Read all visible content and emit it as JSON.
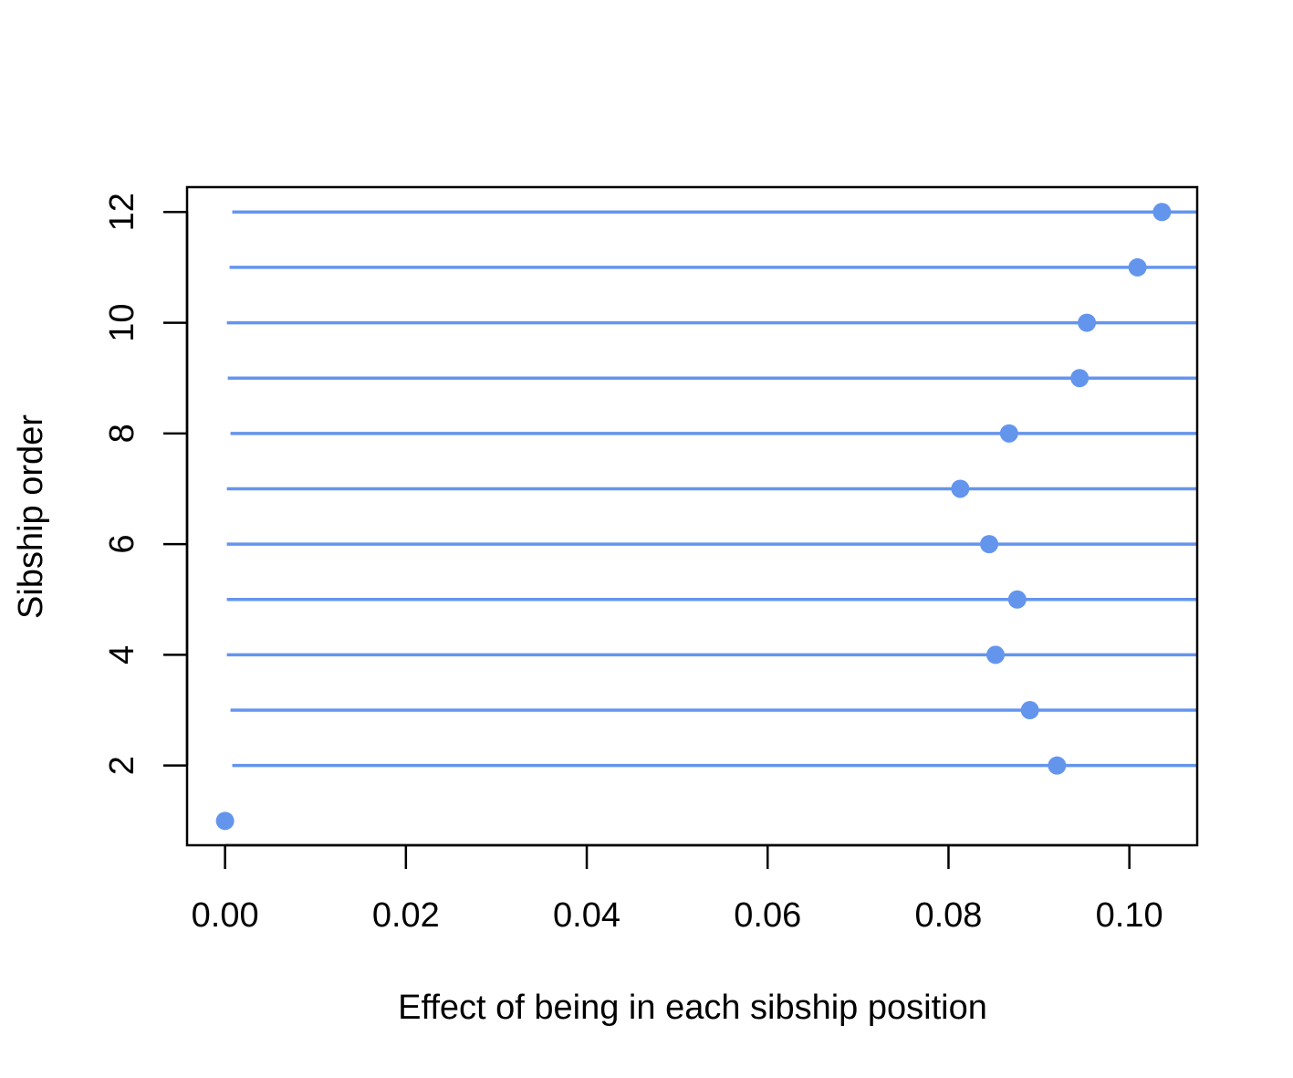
{
  "chart_data": {
    "type": "scatter",
    "title": "",
    "xlabel": "Effect of being in each sibship position",
    "ylabel": "Sibship order",
    "xlim": [
      -0.0042,
      0.1075
    ],
    "ylim": [
      0.56,
      12.45
    ],
    "x_ticks": [
      "0.00",
      "0.02",
      "0.04",
      "0.06",
      "0.08",
      "0.10"
    ],
    "x_tick_values": [
      0,
      0.02,
      0.04,
      0.06,
      0.08,
      0.1
    ],
    "y_ticks": [
      "2",
      "4",
      "6",
      "8",
      "10",
      "12"
    ],
    "y_tick_values": [
      2,
      4,
      6,
      8,
      10,
      12
    ],
    "grid": false,
    "legend": "none",
    "marker_color": "#6495ED",
    "points": [
      {
        "y": 1,
        "x": 0.0,
        "ci": null
      },
      {
        "y": 2,
        "x": 0.092,
        "ci": [
          0.0008,
          0.1075
        ]
      },
      {
        "y": 3,
        "x": 0.089,
        "ci": [
          0.0006,
          0.1075
        ]
      },
      {
        "y": 4,
        "x": 0.0852,
        "ci": [
          0.0002,
          0.1075
        ]
      },
      {
        "y": 5,
        "x": 0.0876,
        "ci": [
          0.0002,
          0.1075
        ]
      },
      {
        "y": 6,
        "x": 0.0845,
        "ci": [
          0.0002,
          0.1075
        ]
      },
      {
        "y": 7,
        "x": 0.0813,
        "ci": [
          0.0002,
          0.1075
        ]
      },
      {
        "y": 8,
        "x": 0.0867,
        "ci": [
          0.0006,
          0.1075
        ]
      },
      {
        "y": 9,
        "x": 0.0945,
        "ci": [
          0.0003,
          0.1075
        ]
      },
      {
        "y": 10,
        "x": 0.0953,
        "ci": [
          0.0002,
          0.1075
        ]
      },
      {
        "y": 11,
        "x": 0.1009,
        "ci": [
          0.0005,
          0.1075
        ]
      },
      {
        "y": 12,
        "x": 0.1036,
        "ci": [
          0.0008,
          0.1075
        ]
      }
    ]
  }
}
